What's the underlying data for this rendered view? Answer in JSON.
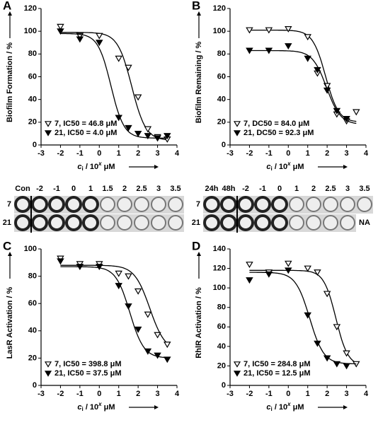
{
  "chart_data": [
    {
      "type": "line",
      "panel": "A",
      "ylabel": "Biofilm Formation / %",
      "xlabel": {
        "var": "c",
        "sub": "i",
        "mid": " / 10",
        "sup": "x",
        "unit": " μM"
      },
      "x": [
        -2,
        -1,
        0,
        1,
        1.5,
        2,
        2.5,
        3,
        3.5
      ],
      "xlim": [
        -3,
        4
      ],
      "xticks": [
        -3,
        -2,
        -1,
        0,
        1,
        2,
        3,
        4
      ],
      "ylim": [
        0,
        120
      ],
      "yticks": [
        0,
        20,
        40,
        60,
        80,
        100,
        120
      ],
      "legend": "lower left",
      "series": [
        {
          "name": "7, IC50 = 46.8 μM",
          "marker": "open",
          "color": "#000000",
          "values": [
            104,
            96,
            96,
            76,
            68,
            42,
            14,
            7,
            5
          ],
          "fit": {
            "top": 99,
            "bottom": 4,
            "logc": 1.67,
            "hill": 1.2
          }
        },
        {
          "name": "21, IC50 = 4.0 μM",
          "marker": "filled",
          "color": "#000000",
          "values": [
            100,
            93,
            90,
            24,
            15,
            10,
            8,
            6,
            8
          ],
          "fit": {
            "top": 98,
            "bottom": 6,
            "logc": 0.6,
            "hill": 1.3
          }
        }
      ]
    },
    {
      "type": "line",
      "panel": "B",
      "ylabel": "Biofilm Remaining / %",
      "xlabel": {
        "var": "c",
        "sub": "i",
        "mid": " / 10",
        "sup": "x",
        "unit": " μM"
      },
      "x": [
        -2,
        -1,
        0,
        1,
        1.5,
        2,
        2.5,
        3,
        3.5
      ],
      "xlim": [
        -3,
        4
      ],
      "xticks": [
        -3,
        -2,
        -1,
        0,
        1,
        2,
        3,
        4
      ],
      "ylim": [
        0,
        120
      ],
      "yticks": [
        0,
        20,
        40,
        60,
        80,
        100,
        120
      ],
      "legend": "lower left",
      "series": [
        {
          "name": "7, DC50 = 84.0 μM",
          "marker": "open",
          "color": "#000000",
          "values": [
            101,
            101,
            102,
            95,
            63,
            52,
            27,
            21,
            29
          ],
          "fit": {
            "top": 101,
            "bottom": 20,
            "logc": 1.92,
            "hill": 1.3
          }
        },
        {
          "name": "21, DC50 = 92.3 μM",
          "marker": "filled",
          "color": "#000000",
          "values": [
            83,
            83,
            87,
            76,
            66,
            48,
            30,
            23,
            null
          ],
          "fit": {
            "top": 83,
            "bottom": 18,
            "logc": 1.97,
            "hill": 1.2
          }
        }
      ]
    },
    {
      "type": "line",
      "panel": "C",
      "ylabel": "LasR Activation / %",
      "xlabel": {
        "var": "c",
        "sub": "i",
        "mid": " / 10",
        "sup": "x",
        "unit": " μM"
      },
      "x": [
        -2,
        -1,
        0,
        1,
        1.5,
        2,
        2.5,
        3,
        3.5
      ],
      "xlim": [
        -3,
        4
      ],
      "xticks": [
        -3,
        -2,
        -1,
        0,
        1,
        2,
        3,
        4
      ],
      "ylim": [
        0,
        100
      ],
      "yticks": [
        0,
        20,
        40,
        60,
        80,
        100
      ],
      "legend": "lower left",
      "series": [
        {
          "name": "7, IC50 = 398.8 μM",
          "marker": "open",
          "color": "#000000",
          "values": [
            93,
            89,
            89,
            82,
            80,
            69,
            52,
            37,
            30
          ],
          "fit": {
            "top": 88,
            "bottom": 25,
            "logc": 2.6,
            "hill": 1.1
          }
        },
        {
          "name": "21, IC50 = 37.5 μM",
          "marker": "filled",
          "color": "#000000",
          "values": [
            91,
            87,
            87,
            73,
            58,
            41,
            25,
            22,
            19
          ],
          "fit": {
            "top": 87,
            "bottom": 20,
            "logc": 1.57,
            "hill": 1.2
          }
        }
      ]
    },
    {
      "type": "line",
      "panel": "D",
      "ylabel": "RhlR Activation / %",
      "xlabel": {
        "var": "c",
        "sub": "i",
        "mid": " / 10",
        "sup": "x",
        "unit": " μM"
      },
      "x": [
        -2,
        -1,
        0,
        1,
        1.5,
        2,
        2.5,
        3,
        3.5
      ],
      "xlim": [
        -3,
        4
      ],
      "xticks": [
        -3,
        -2,
        -1,
        0,
        1,
        2,
        3,
        4
      ],
      "ylim": [
        0,
        140
      ],
      "yticks": [
        0,
        20,
        40,
        60,
        80,
        100,
        120,
        140
      ],
      "legend": "lower left",
      "series": [
        {
          "name": "7, IC50 = 284.8 μM",
          "marker": "open",
          "color": "#000000",
          "values": [
            124,
            116,
            125,
            120,
            116,
            94,
            60,
            33,
            22
          ],
          "fit": {
            "top": 118,
            "bottom": 20,
            "logc": 2.45,
            "hill": 1.4
          }
        },
        {
          "name": "21, IC50 = 12.5 μM",
          "marker": "filled",
          "color": "#000000",
          "values": [
            108,
            114,
            118,
            72,
            43,
            28,
            22,
            20,
            null
          ],
          "fit": {
            "top": 116,
            "bottom": 22,
            "logc": 1.1,
            "hill": 1.2
          }
        }
      ]
    }
  ],
  "well_strips": [
    {
      "columns": [
        "Con",
        "-2",
        "-1",
        "0",
        "1",
        "1.5",
        "2",
        "2.5",
        "3",
        "3.5"
      ],
      "rows": [
        "7",
        "21"
      ]
    },
    {
      "columns": [
        "24h",
        "48h",
        "-2",
        "-1",
        "0",
        "1",
        "2",
        "2.5",
        "3",
        "3.5"
      ],
      "rows": [
        "7",
        "21"
      ],
      "na": "NA"
    }
  ]
}
